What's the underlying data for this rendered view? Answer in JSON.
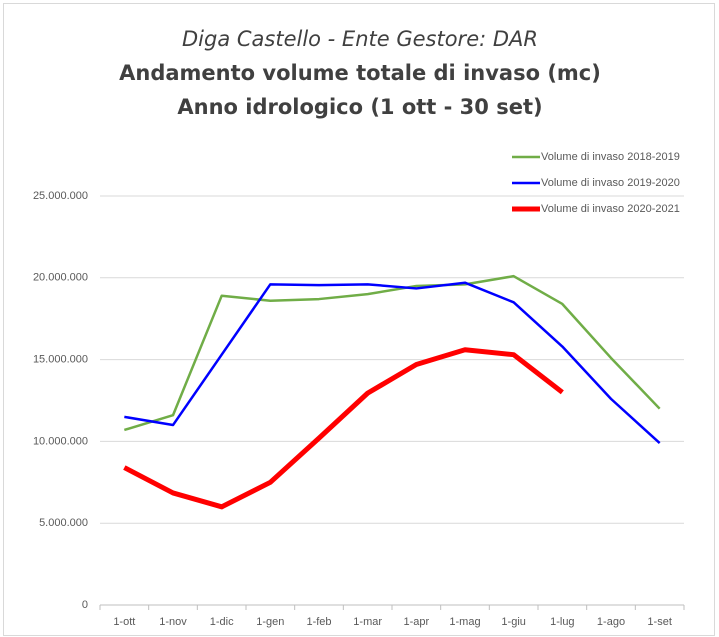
{
  "chart_data": {
    "type": "line",
    "title": [
      "Diga Castello - Ente Gestore: DAR",
      "Andamento volume totale di invaso (mc)",
      "Anno idrologico (1 ott - 30 set)"
    ],
    "categories": [
      "1-ott",
      "1-nov",
      "1-dic",
      "1-gen",
      "1-feb",
      "1-mar",
      "1-apr",
      "1-mag",
      "1-giu",
      "1-lug",
      "1-ago",
      "1-set"
    ],
    "series": [
      {
        "name": "Volume di invaso 2018-2019",
        "color": "#70ad47",
        "width": 2.5,
        "values": [
          10700000,
          11600000,
          18900000,
          18600000,
          18700000,
          19000000,
          19500000,
          19600000,
          20100000,
          18400000,
          15100000,
          12000000
        ]
      },
      {
        "name": "Volume di invaso 2019-2020",
        "color": "#0000ff",
        "width": 2.5,
        "values": [
          11500000,
          11000000,
          15300000,
          19600000,
          19550000,
          19600000,
          19350000,
          19700000,
          18500000,
          15800000,
          12600000,
          9900000
        ]
      },
      {
        "name": "Volume di invaso 2020-2021",
        "color": "#ff0000",
        "width": 5,
        "values": [
          8400000,
          6850000,
          6000000,
          7500000,
          10200000,
          12950000,
          14700000,
          15600000,
          15300000,
          13000000,
          null,
          null
        ]
      }
    ],
    "ylim": [
      0,
      25000000
    ],
    "yticks": [
      0,
      {
        "value": 5000000,
        "label": "5.000.000"
      },
      {
        "value": 10000000,
        "label": "10.000.000"
      },
      {
        "value": 15000000,
        "label": "15.000.000"
      },
      {
        "value": 20000000,
        "label": "20.000.000"
      },
      {
        "value": 25000000,
        "label": "25.000.000"
      }
    ],
    "grid": true,
    "legend": "top-right"
  }
}
